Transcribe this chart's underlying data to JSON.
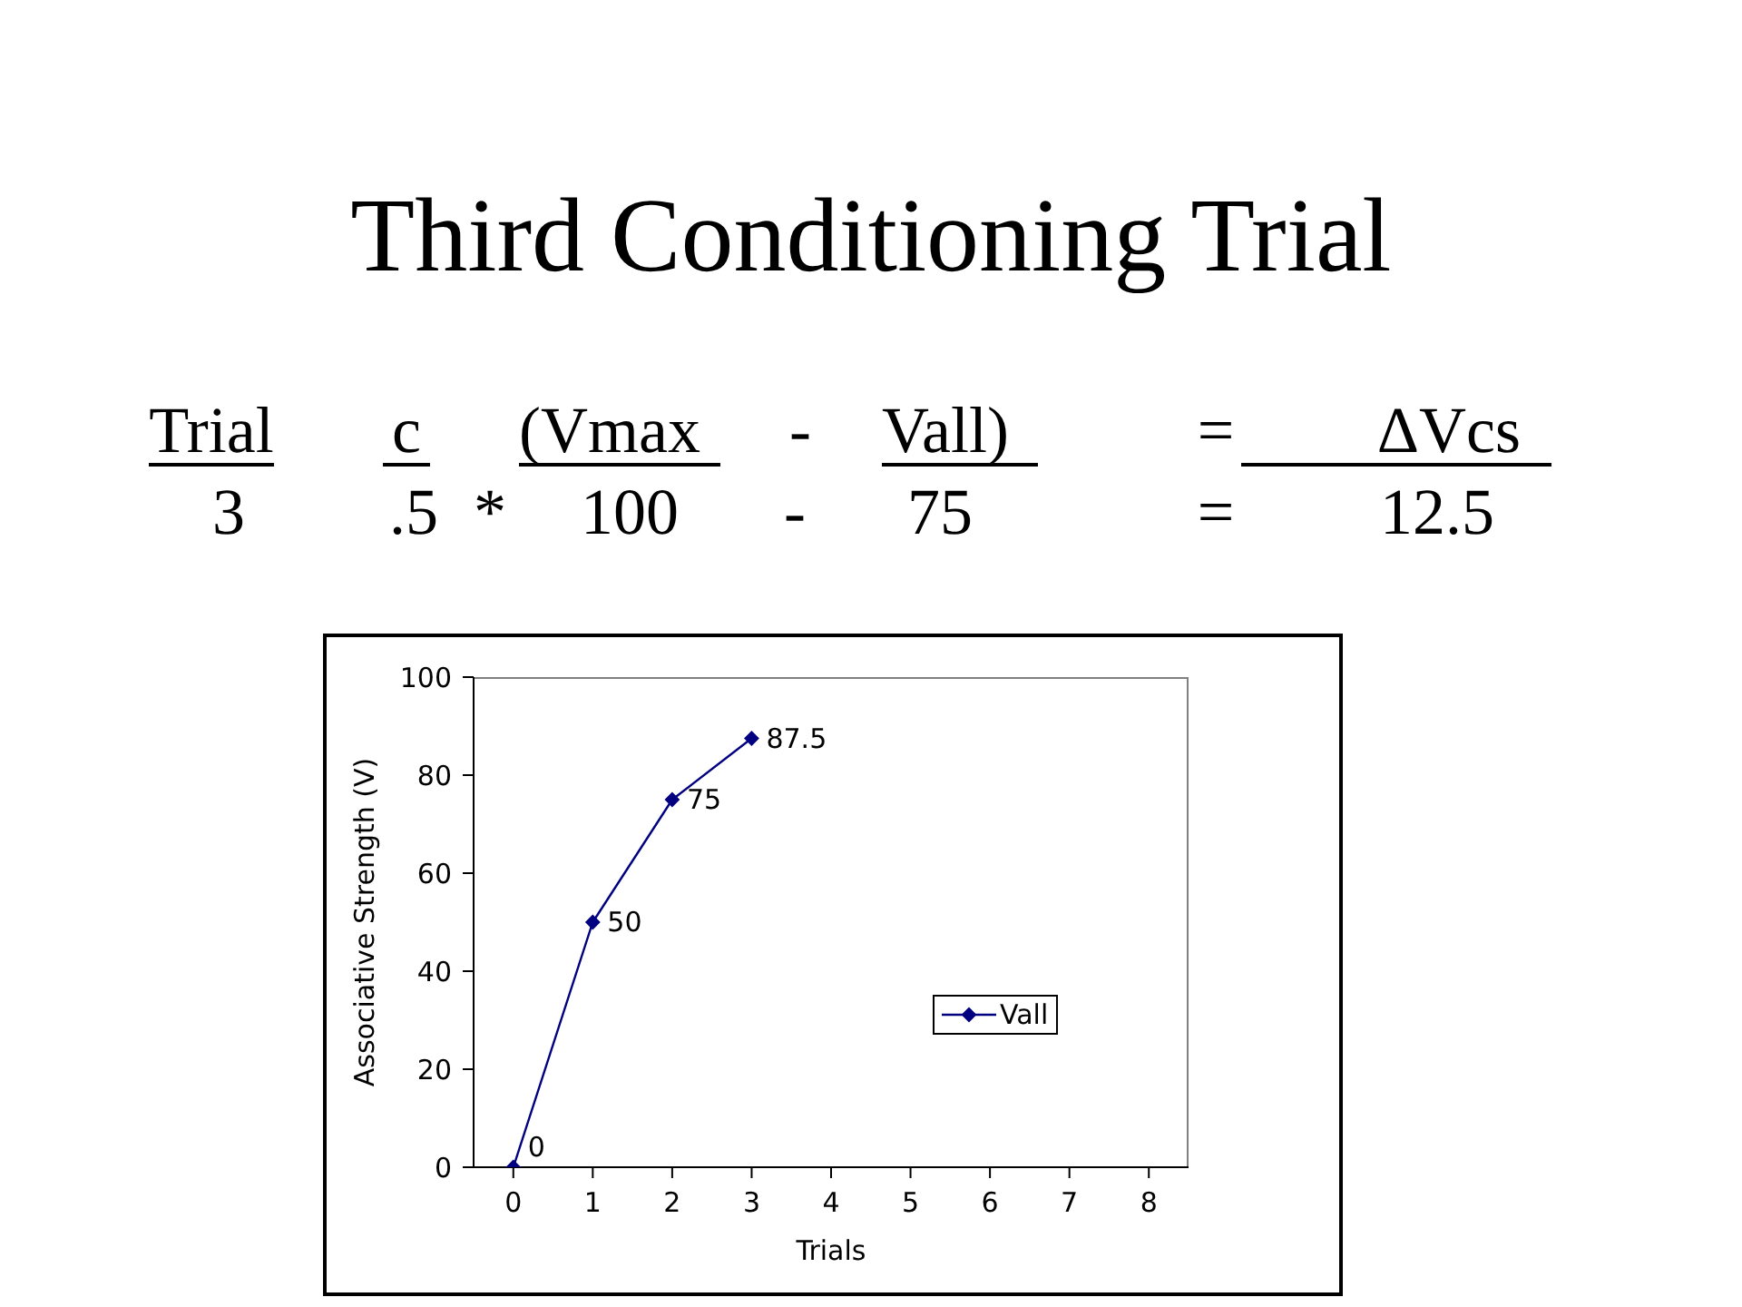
{
  "chart_data": {
    "type": "line",
    "title": "Third Conditioning Trial",
    "annotations": [
      "Trial",
      "c",
      "(Vmax",
      "-",
      "Vall)",
      "=",
      "ΔVcs",
      "3",
      ".5",
      "*",
      "100",
      "-",
      "75",
      "=",
      "12.5"
    ],
    "xlabel": "Trials",
    "ylabel": "Associative Strength (V)",
    "categories": [
      "0",
      "1",
      "2",
      "3",
      "4",
      "5",
      "6",
      "7",
      "8"
    ],
    "series": [
      {
        "name": "Vall",
        "color": "#000080",
        "values": [
          0,
          50,
          75,
          87.5,
          null,
          null,
          null,
          null,
          null
        ]
      }
    ],
    "ylim": [
      0,
      100
    ],
    "yticks": [
      0,
      20,
      40,
      60,
      80,
      100
    ],
    "grid": false,
    "legend": "right",
    "marker": "diamond",
    "line_style": "solid",
    "data_labels": true
  }
}
